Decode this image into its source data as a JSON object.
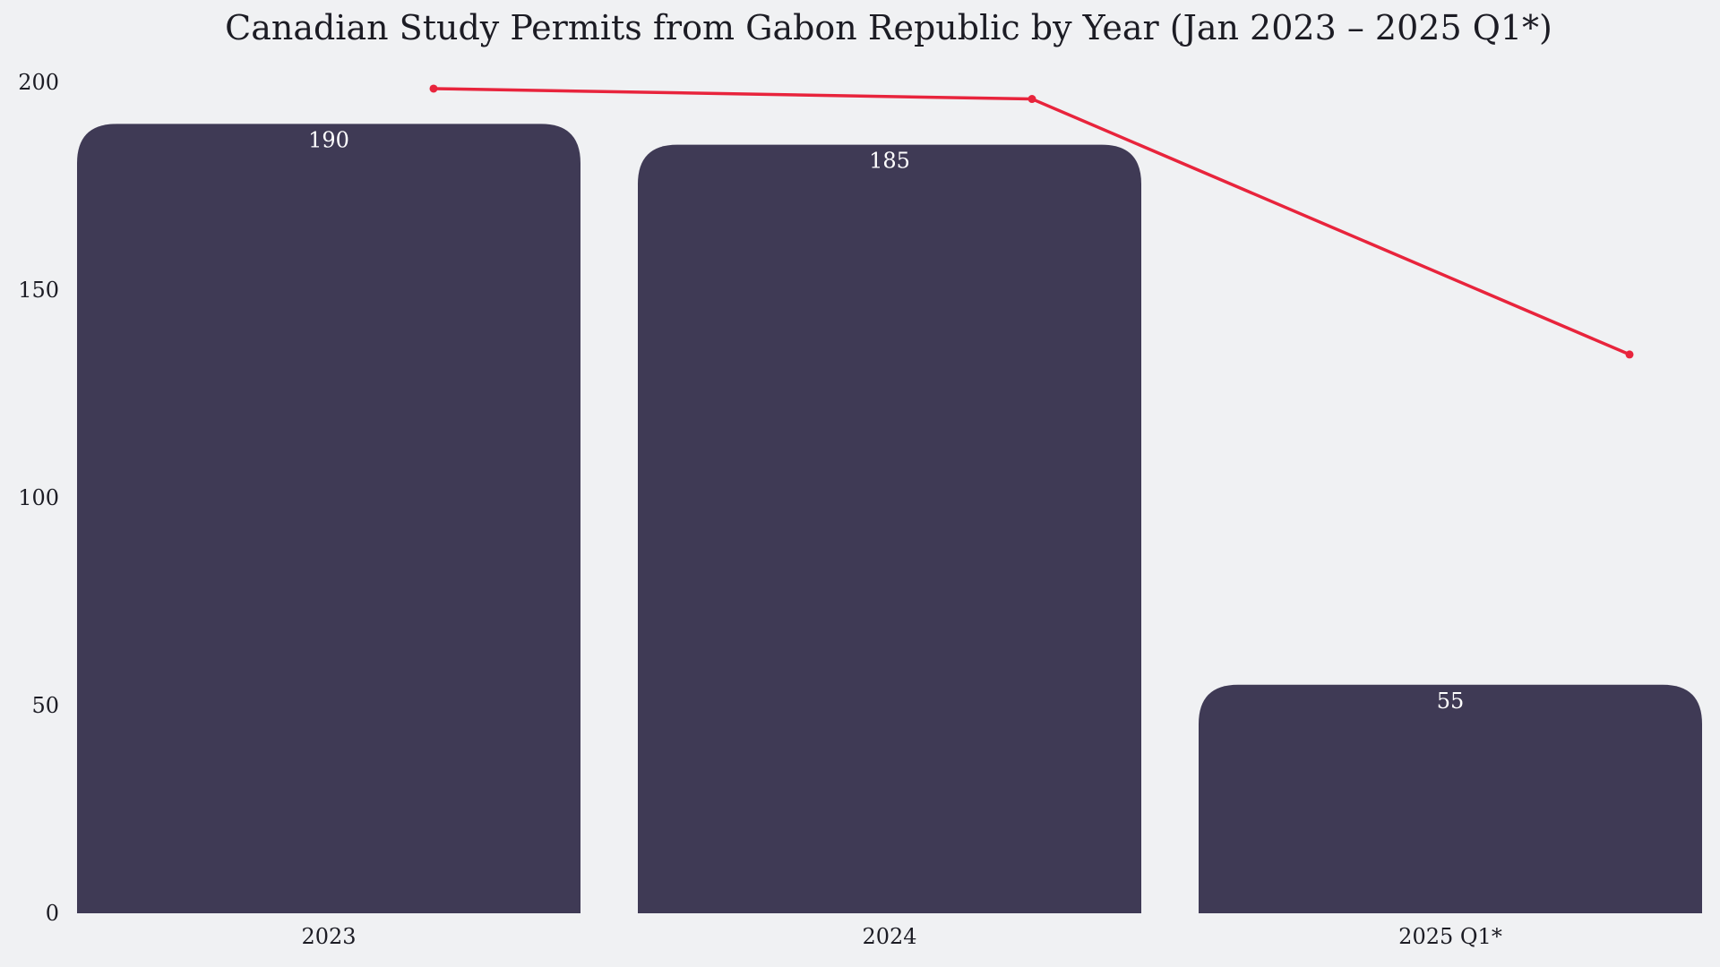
{
  "chart_data": {
    "type": "bar",
    "title": "Canadian Study Permits from Gabon Republic by Year (Jan 2023 – 2025 Q1*)",
    "xlabel": "",
    "ylabel": "",
    "categories": [
      "2023",
      "2024",
      "2025 Q1*"
    ],
    "series": [
      {
        "type": "bar",
        "values": [
          190,
          185,
          55
        ],
        "color": "#3f3a55"
      },
      {
        "type": "line",
        "values": [
          198.5,
          196,
          134.5
        ],
        "color": "#e8243c"
      }
    ],
    "data_labels": [
      "190",
      "185",
      "55"
    ],
    "ylim": [
      0,
      200
    ],
    "yticks": [
      0,
      50,
      100,
      150,
      200
    ],
    "ytick_labels": [
      "0",
      "50",
      "100",
      "150",
      "200"
    ],
    "grid": false,
    "legend": "none"
  }
}
